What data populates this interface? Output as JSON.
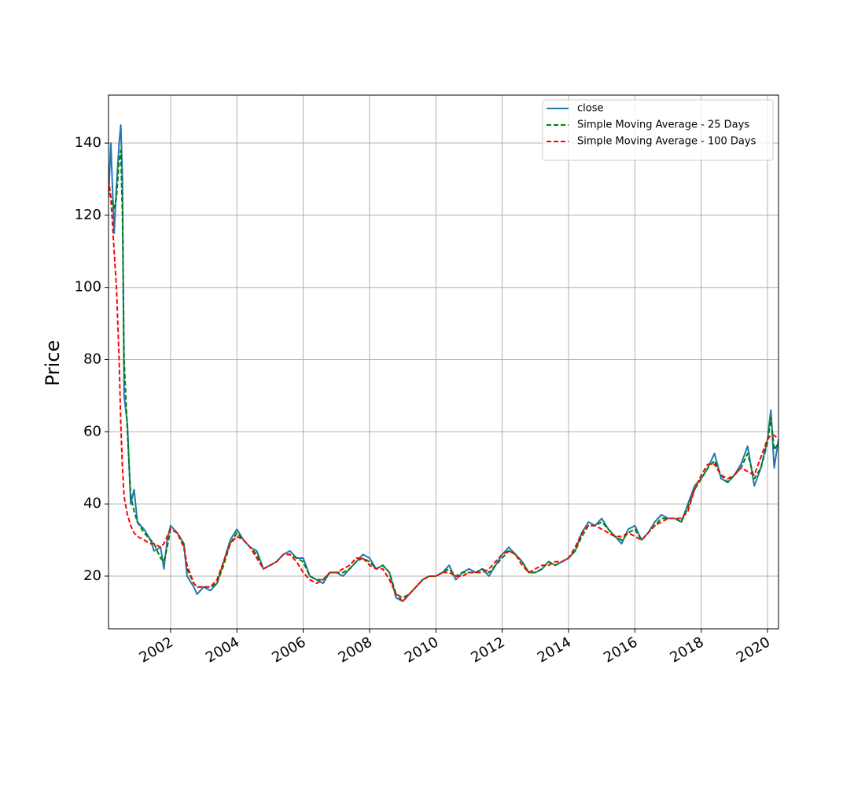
{
  "chart_data": {
    "type": "line",
    "ylabel": "Price",
    "grid": true,
    "legend": "upper right",
    "xlim": [
      2000.13,
      2020.33
    ],
    "ylim": [
      5.4,
      153.3
    ],
    "xticks": [
      2002,
      2004,
      2006,
      2008,
      2010,
      2012,
      2014,
      2016,
      2018,
      2020
    ],
    "yticks": [
      20,
      40,
      60,
      80,
      100,
      120,
      140
    ],
    "x": [
      2000.13,
      2000.2,
      2000.3,
      2000.37,
      2000.45,
      2000.5,
      2000.55,
      2000.6,
      2000.7,
      2000.8,
      2000.9,
      2001.0,
      2001.2,
      2001.4,
      2001.5,
      2001.7,
      2001.8,
      2001.9,
      2002.0,
      2002.2,
      2002.4,
      2002.5,
      2002.7,
      2002.8,
      2003.0,
      2003.2,
      2003.4,
      2003.6,
      2003.8,
      2004.0,
      2004.2,
      2004.4,
      2004.6,
      2004.8,
      2005.0,
      2005.2,
      2005.4,
      2005.6,
      2005.8,
      2006.0,
      2006.2,
      2006.4,
      2006.6,
      2006.8,
      2007.0,
      2007.2,
      2007.4,
      2007.6,
      2007.8,
      2008.0,
      2008.2,
      2008.4,
      2008.6,
      2008.8,
      2009.0,
      2009.2,
      2009.4,
      2009.6,
      2009.8,
      2010.0,
      2010.2,
      2010.4,
      2010.6,
      2010.8,
      2011.0,
      2011.2,
      2011.4,
      2011.6,
      2011.8,
      2012.0,
      2012.2,
      2012.4,
      2012.6,
      2012.8,
      2013.0,
      2013.2,
      2013.4,
      2013.6,
      2013.8,
      2014.0,
      2014.2,
      2014.4,
      2014.6,
      2014.8,
      2015.0,
      2015.2,
      2015.4,
      2015.6,
      2015.8,
      2016.0,
      2016.2,
      2016.4,
      2016.6,
      2016.8,
      2017.0,
      2017.2,
      2017.4,
      2017.6,
      2017.8,
      2018.0,
      2018.2,
      2018.4,
      2018.6,
      2018.8,
      2019.0,
      2019.2,
      2019.4,
      2019.6,
      2019.8,
      2020.0,
      2020.1,
      2020.2,
      2020.33
    ],
    "series": [
      {
        "name": "close",
        "color": "#1f77b4",
        "linestyle": "solid",
        "values": [
          125,
          140,
          115,
          128,
          140,
          145,
          130,
          70,
          62,
          40,
          44,
          35,
          33,
          30,
          27,
          28,
          22,
          30,
          34,
          32,
          29,
          20,
          17,
          15,
          17,
          16,
          18,
          24,
          30,
          33,
          30,
          28,
          27,
          22,
          23,
          24,
          26,
          27,
          25,
          25,
          20,
          19,
          18,
          21,
          21,
          20,
          22,
          24,
          26,
          25,
          22,
          23,
          21,
          14,
          13,
          15,
          17,
          19,
          20,
          20,
          21,
          23,
          19,
          21,
          22,
          21,
          22,
          20,
          23,
          26,
          28,
          26,
          24,
          21,
          21,
          22,
          24,
          23,
          24,
          25,
          27,
          32,
          35,
          34,
          36,
          33,
          31,
          29,
          33,
          34,
          30,
          32,
          35,
          37,
          36,
          36,
          35,
          40,
          45,
          47,
          50,
          54,
          47,
          46,
          48,
          51,
          56,
          45,
          50,
          58,
          66,
          50,
          58
        ]
      },
      {
        "name": "Simple Moving Average - 25 Days",
        "color": "#008000",
        "linestyle": "dashed",
        "values": [
          128,
          125,
          122,
          125,
          135,
          138,
          120,
          80,
          60,
          42,
          38,
          35,
          32,
          30,
          29,
          25,
          24,
          28,
          33,
          32,
          29,
          22,
          18,
          17,
          17,
          17,
          18,
          23,
          29,
          32,
          30,
          28,
          26,
          22,
          23,
          24,
          26,
          26,
          25,
          24,
          20,
          19,
          19,
          21,
          21,
          21,
          22,
          24,
          25,
          24,
          22,
          23,
          21,
          15,
          14,
          15,
          17,
          19,
          20,
          20,
          21,
          22,
          20,
          21,
          21,
          21,
          22,
          21,
          23,
          25,
          27,
          26,
          24,
          21,
          21,
          22,
          24,
          23,
          24,
          25,
          27,
          31,
          34,
          34,
          35,
          33,
          31,
          30,
          32,
          33,
          30,
          32,
          34,
          36,
          36,
          36,
          35,
          39,
          44,
          47,
          50,
          52,
          48,
          46,
          48,
          50,
          54,
          47,
          50,
          57,
          64,
          55,
          57
        ]
      },
      {
        "name": "Simple Moving Average - 100 Days",
        "color": "#ff0000",
        "linestyle": "dashed",
        "values": [
          130,
          125,
          110,
          100,
          80,
          62,
          50,
          42,
          37,
          34,
          32,
          31,
          30,
          29,
          29,
          28,
          29,
          31,
          33,
          32,
          28,
          23,
          18,
          17,
          17,
          17,
          19,
          24,
          29,
          31,
          30,
          28,
          25,
          22,
          23,
          24,
          26,
          26,
          24,
          21,
          19,
          18,
          19,
          21,
          21,
          22,
          23,
          25,
          25,
          23,
          22,
          22,
          19,
          15,
          13,
          15,
          17,
          19,
          20,
          20,
          21,
          21,
          20,
          20,
          21,
          21,
          21,
          22,
          24,
          26,
          27,
          26,
          23,
          21,
          22,
          23,
          23,
          24,
          24,
          25,
          28,
          32,
          34,
          34,
          33,
          32,
          31,
          31,
          32,
          31,
          30,
          32,
          34,
          35,
          36,
          36,
          36,
          38,
          44,
          48,
          51,
          51,
          48,
          47,
          48,
          50,
          49,
          48,
          53,
          58,
          59,
          59,
          58
        ]
      }
    ]
  }
}
